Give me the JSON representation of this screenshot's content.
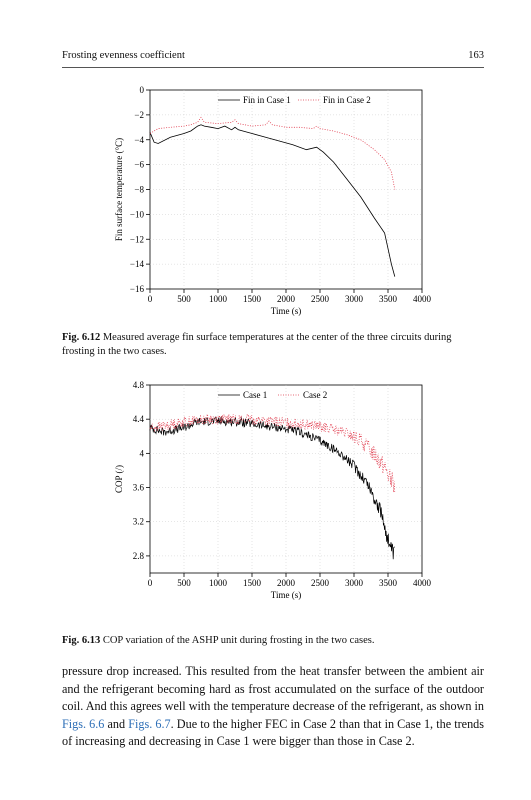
{
  "header": {
    "running_title": "Frosting evenness coefficient",
    "page_number": "163"
  },
  "figures": [
    {
      "caption_label": "Fig. 6.12",
      "caption_text": "Measured average fin surface temperatures at the center of the three circuits during frosting in the two cases.",
      "chart_data": {
        "type": "line",
        "xlabel": "Time (s)",
        "ylabel": "Fin surface temperature (°C)",
        "xlim": [
          0,
          4000
        ],
        "ylim": [
          -16,
          0
        ],
        "xticks": [
          0,
          500,
          1000,
          1500,
          2000,
          2500,
          3000,
          3500,
          4000
        ],
        "yticks": [
          0,
          -2,
          -4,
          -6,
          -8,
          -10,
          -12,
          -14,
          -16
        ],
        "grid": true,
        "legend_position": "top-center",
        "series": [
          {
            "name": "Fin in Case 1",
            "style": "solid",
            "color": "#000000",
            "x": [
              0,
              60,
              120,
              300,
              500,
              600,
              700,
              750,
              800,
              900,
              1000,
              1100,
              1200,
              1250,
              1300,
              1500,
              1700,
              1900,
              2100,
              2300,
              2450,
              2550,
              2700,
              2900,
              3100,
              3300,
              3450,
              3550,
              3600
            ],
            "y": [
              -3.4,
              -4.2,
              -4.3,
              -3.8,
              -3.5,
              -3.3,
              -2.9,
              -2.8,
              -2.9,
              -3.0,
              -3.1,
              -2.9,
              -3.2,
              -3.0,
              -3.2,
              -3.5,
              -3.8,
              -4.1,
              -4.4,
              -4.8,
              -4.6,
              -5.0,
              -5.8,
              -7.2,
              -8.6,
              -10.3,
              -11.5,
              -14.0,
              -15.0
            ]
          },
          {
            "name": "Fin in Case 2",
            "style": "dotted",
            "color": "#e0394b",
            "x": [
              0,
              60,
              120,
              300,
              500,
              600,
              700,
              750,
              800,
              1000,
              1200,
              1250,
              1300,
              1500,
              1700,
              1750,
              1800,
              2000,
              2200,
              2400,
              2450,
              2500,
              2700,
              2900,
              3100,
              3300,
              3450,
              3550,
              3600
            ],
            "y": [
              -3.5,
              -3.3,
              -3.1,
              -3.0,
              -2.9,
              -2.8,
              -2.6,
              -2.2,
              -2.6,
              -2.7,
              -2.6,
              -2.4,
              -2.7,
              -2.9,
              -2.8,
              -2.5,
              -2.8,
              -3.0,
              -3.0,
              -3.1,
              -2.9,
              -3.1,
              -3.3,
              -3.6,
              -4.0,
              -4.8,
              -5.6,
              -6.6,
              -8.0
            ]
          }
        ]
      }
    },
    {
      "caption_label": "Fig. 6.13",
      "caption_text": "COP variation of the ASHP unit during frosting in the two cases.",
      "chart_data": {
        "type": "line",
        "xlabel": "Time (s)",
        "ylabel": "COP (/)",
        "xlim": [
          0,
          4000
        ],
        "ylim": [
          2.6,
          4.8
        ],
        "xticks": [
          0,
          500,
          1000,
          1500,
          2000,
          2500,
          3000,
          3500,
          4000
        ],
        "yticks": [
          2.8,
          3.2,
          3.6,
          4.0,
          4.4,
          4.8
        ],
        "grid": true,
        "legend_position": "top-center",
        "series": [
          {
            "name": "Case 1",
            "style": "solid",
            "color": "#000000",
            "noise": 0.05,
            "x": [
              0,
              200,
              500,
              700,
              1000,
              1300,
              1600,
              1900,
              2200,
              2500,
              2800,
              3000,
              3200,
              3400,
              3500,
              3550,
              3600
            ],
            "y": [
              4.3,
              4.25,
              4.3,
              4.37,
              4.38,
              4.37,
              4.33,
              4.3,
              4.25,
              4.15,
              4.0,
              3.85,
              3.65,
              3.3,
              3.0,
              2.85,
              2.8
            ]
          },
          {
            "name": "Case 2",
            "style": "dotted",
            "color": "#e0394b",
            "noise": 0.06,
            "x": [
              0,
              200,
              500,
              800,
              1100,
              1400,
              1700,
              2000,
              2300,
              2600,
              2900,
              3100,
              3300,
              3450,
              3600
            ],
            "y": [
              4.3,
              4.32,
              4.37,
              4.4,
              4.4,
              4.4,
              4.38,
              4.36,
              4.34,
              4.3,
              4.23,
              4.15,
              4.0,
              3.85,
              3.6
            ]
          }
        ]
      }
    }
  ],
  "body": {
    "text_1": "pressure drop increased. This resulted from the heat transfer between the ambient air and the refrigerant becoming hard as frost accumulated on the surface of the outdoor coil. And this agrees well with the temperature decrease of the refrigerant, as shown in ",
    "link_1": "Figs. 6.6",
    "text_2": " and ",
    "link_2": "Figs. 6.7",
    "text_3": ". Due to the higher FEC in Case 2 than that in Case 1, the trends of increasing and decreasing in Case 1 were bigger than those in Case 2."
  }
}
